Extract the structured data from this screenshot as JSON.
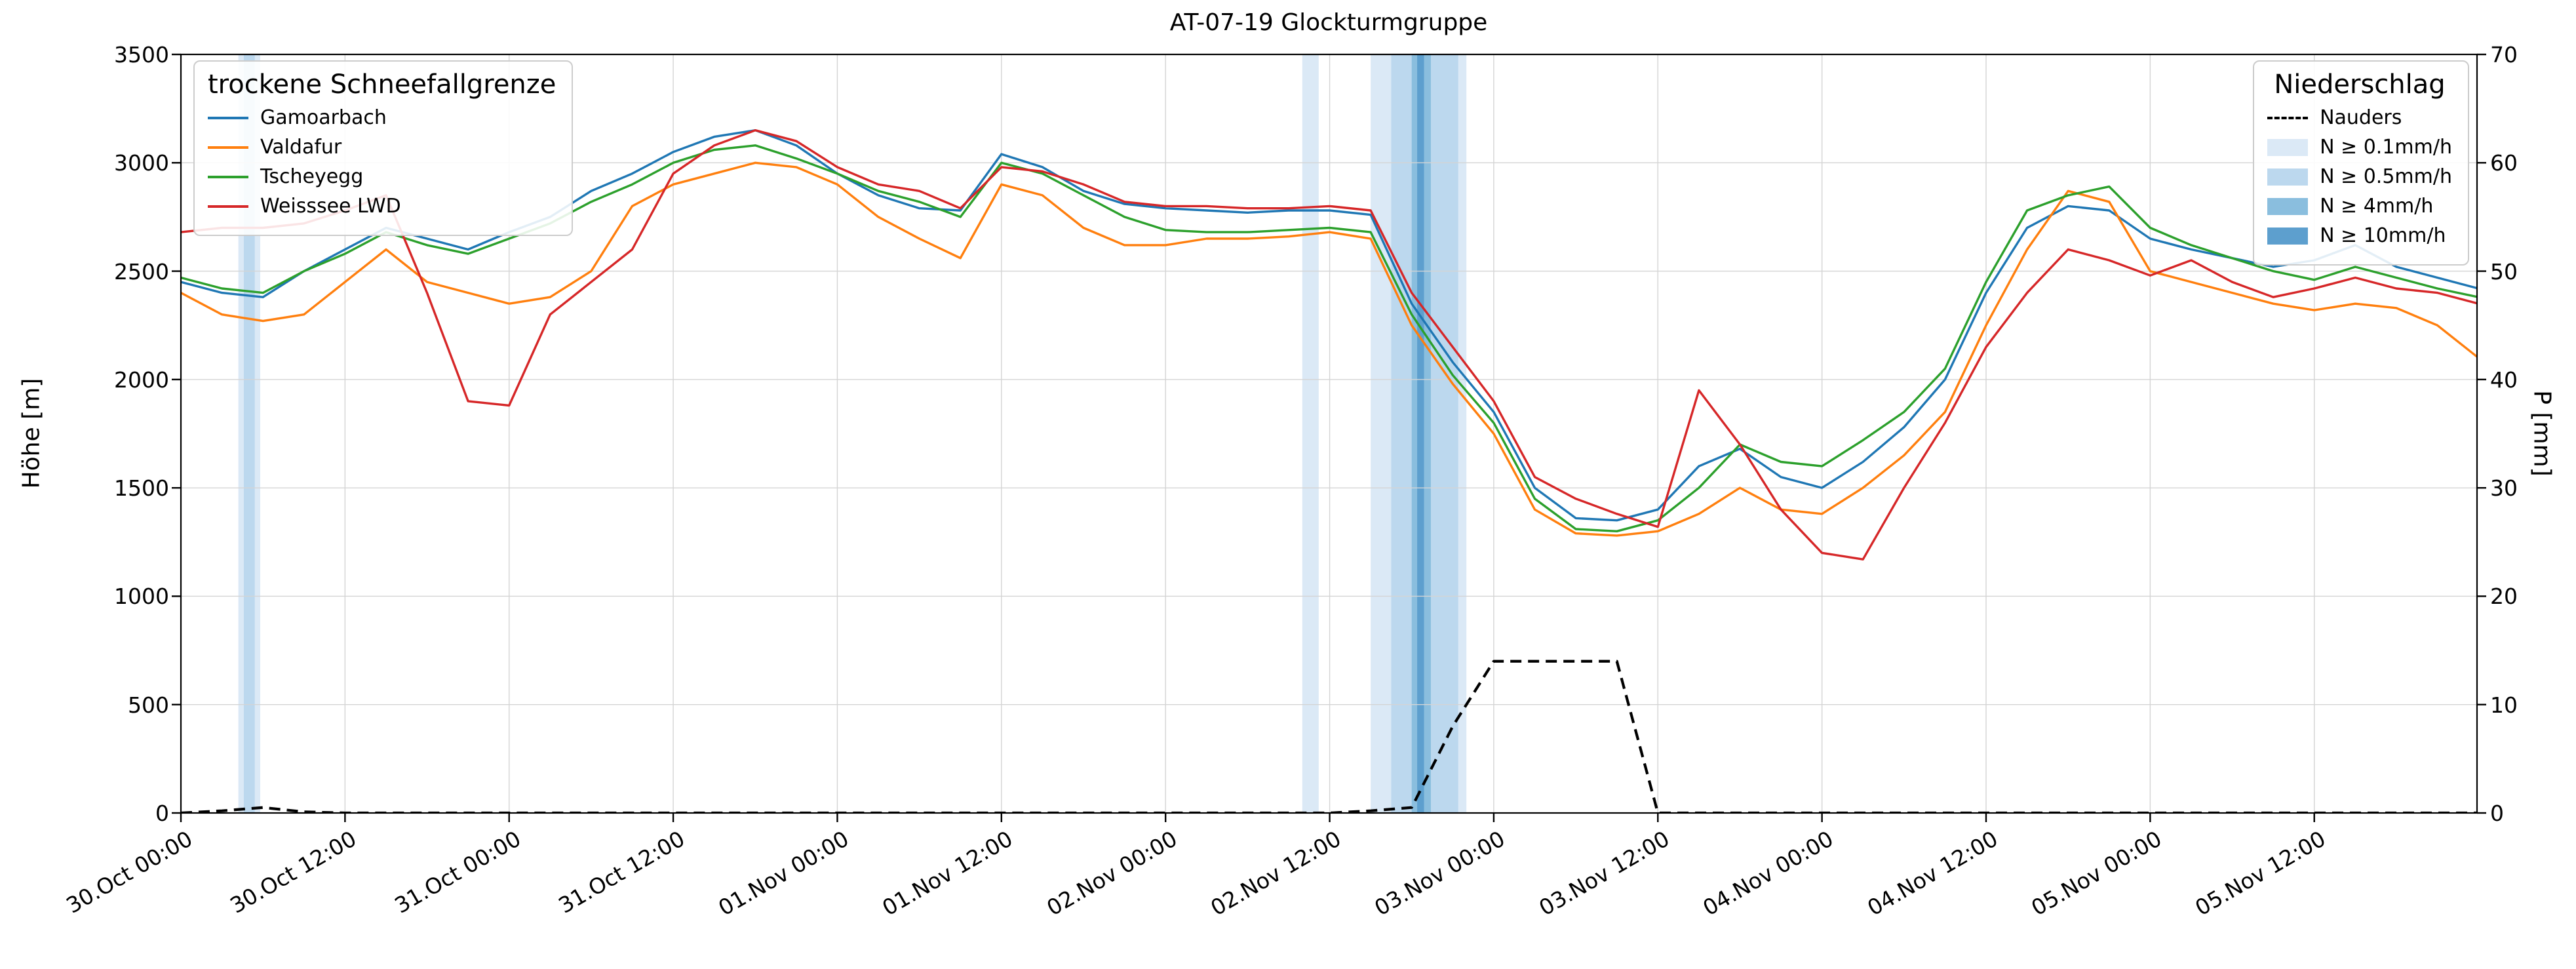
{
  "title": "AT-07-19 Glockturmgruppe",
  "axes": {
    "y_left": {
      "label": "Höhe [m]",
      "ticks": [
        0,
        500,
        1000,
        1500,
        2000,
        2500,
        3000,
        3500
      ]
    },
    "y_right": {
      "label": "P [mm]",
      "ticks": [
        0,
        10,
        20,
        30,
        40,
        50,
        60,
        70
      ]
    },
    "x": {
      "tick_hours": [
        0,
        12,
        24,
        36,
        48,
        60,
        72,
        84,
        96,
        108,
        120,
        132,
        144,
        156
      ],
      "tick_labels": [
        "30.Oct 00:00",
        "30.Oct 12:00",
        "31.Oct 00:00",
        "31.Oct 12:00",
        "01.Nov 00:00",
        "01.Nov 12:00",
        "02.Nov 00:00",
        "02.Nov 12:00",
        "03.Nov 00:00",
        "03.Nov 12:00",
        "04.Nov 00:00",
        "04.Nov 12:00",
        "05.Nov 00:00",
        "05.Nov 12:00"
      ]
    }
  },
  "legend_snowline": {
    "title": "trockene Schneefallgrenze"
  },
  "legend_precip": {
    "title": "Niederschlag",
    "band_items": [
      {
        "label": "N ≥ 0.1mm/h",
        "level": "0.1"
      },
      {
        "label": "N ≥ 0.5mm/h",
        "level": "0.5"
      },
      {
        "label": "N ≥ 4mm/h",
        "level": "4"
      },
      {
        "label": "N ≥ 10mm/h",
        "level": "10"
      }
    ]
  },
  "chart_data": {
    "type": "line",
    "title": "AT-07-19 Glockturmgruppe",
    "x_unit": "hours since 30 Oct 00:00",
    "xlim_hours": [
      0,
      167.9
    ],
    "ylim_left": [
      0,
      3500
    ],
    "ylim_right": [
      0,
      70
    ],
    "grid": true,
    "x": [
      0,
      3,
      6,
      9,
      12,
      15,
      18,
      21,
      24,
      27,
      30,
      33,
      36,
      39,
      42,
      45,
      48,
      51,
      54,
      57,
      60,
      63,
      66,
      69,
      72,
      75,
      78,
      81,
      84,
      87,
      90,
      93,
      96,
      99,
      102,
      105,
      108,
      111,
      114,
      117,
      120,
      123,
      126,
      129,
      132,
      135,
      138,
      141,
      144,
      147,
      150,
      153,
      156,
      159,
      162,
      165,
      168
    ],
    "series": [
      {
        "name": "Gamoarbach",
        "color": "#1f77b4",
        "axis": "left",
        "values": [
          2450,
          2400,
          2380,
          2500,
          2600,
          2700,
          2650,
          2600,
          2680,
          2750,
          2870,
          2950,
          3050,
          3120,
          3150,
          3080,
          2950,
          2850,
          2790,
          2780,
          3040,
          2980,
          2870,
          2810,
          2790,
          2780,
          2770,
          2780,
          2780,
          2760,
          2350,
          2080,
          1850,
          1500,
          1360,
          1350,
          1400,
          1600,
          1680,
          1550,
          1500,
          1620,
          1780,
          2000,
          2400,
          2700,
          2800,
          2780,
          2650,
          2600,
          2560,
          2520,
          2550,
          2620,
          2520,
          2470,
          2420
        ]
      },
      {
        "name": "Valdafur",
        "color": "#ff7f0e",
        "axis": "left",
        "values": [
          2400,
          2300,
          2270,
          2300,
          2450,
          2600,
          2450,
          2400,
          2350,
          2380,
          2500,
          2800,
          2900,
          2950,
          3000,
          2980,
          2900,
          2750,
          2650,
          2560,
          2900,
          2850,
          2700,
          2620,
          2620,
          2650,
          2650,
          2660,
          2680,
          2650,
          2250,
          1980,
          1750,
          1400,
          1290,
          1280,
          1300,
          1380,
          1500,
          1400,
          1380,
          1500,
          1650,
          1850,
          2250,
          2600,
          2870,
          2820,
          2500,
          2450,
          2400,
          2350,
          2320,
          2350,
          2330,
          2250,
          2100
        ]
      },
      {
        "name": "Tscheyegg",
        "color": "#2ca02c",
        "axis": "left",
        "values": [
          2470,
          2420,
          2400,
          2500,
          2580,
          2680,
          2620,
          2580,
          2650,
          2720,
          2820,
          2900,
          3000,
          3060,
          3080,
          3020,
          2950,
          2870,
          2820,
          2750,
          3000,
          2950,
          2850,
          2750,
          2690,
          2680,
          2680,
          2690,
          2700,
          2680,
          2300,
          2020,
          1800,
          1450,
          1310,
          1300,
          1350,
          1500,
          1700,
          1620,
          1600,
          1720,
          1850,
          2050,
          2450,
          2780,
          2850,
          2890,
          2700,
          2620,
          2560,
          2500,
          2460,
          2520,
          2470,
          2420,
          2380
        ]
      },
      {
        "name": "Weisssee LWD",
        "color": "#d62728",
        "axis": "left",
        "values": [
          2680,
          2700,
          2700,
          2720,
          2780,
          2850,
          2400,
          1900,
          1880,
          2300,
          2450,
          2600,
          2950,
          3080,
          3150,
          3100,
          2980,
          2900,
          2870,
          2790,
          2980,
          2960,
          2900,
          2820,
          2800,
          2800,
          2790,
          2790,
          2800,
          2780,
          2400,
          2150,
          1900,
          1550,
          1450,
          1380,
          1320,
          1950,
          1700,
          1400,
          1200,
          1170,
          1500,
          1800,
          2150,
          2400,
          2600,
          2550,
          2480,
          2550,
          2450,
          2380,
          2420,
          2470,
          2420,
          2400,
          2350
        ]
      }
    ],
    "precip_series": {
      "name": "Nauders",
      "style": "dashed",
      "color": "#000000",
      "axis": "right",
      "values": [
        0,
        0.2,
        0.5,
        0.1,
        0,
        0,
        0,
        0,
        0,
        0,
        0,
        0,
        0,
        0,
        0,
        0,
        0,
        0,
        0,
        0,
        0,
        0,
        0,
        0,
        0,
        0,
        0,
        0,
        0,
        0.2,
        0.5,
        8,
        14,
        14,
        14,
        14,
        0,
        0,
        0,
        0,
        0,
        0,
        0,
        0,
        0,
        0,
        0,
        0,
        0,
        0,
        0,
        0,
        0,
        0,
        0,
        0,
        0
      ]
    },
    "band_colors": {
      "0.1": "#dbe9f6",
      "0.5": "#bcd8ee",
      "4": "#8abede",
      "10": "#5d9fce"
    },
    "precip_bands": [
      {
        "start_h": 4.2,
        "end_h": 5.8,
        "level": "0.1"
      },
      {
        "start_h": 4.6,
        "end_h": 5.4,
        "level": "0.5"
      },
      {
        "start_h": 82.0,
        "end_h": 83.2,
        "level": "0.1"
      },
      {
        "start_h": 87.0,
        "end_h": 94.0,
        "level": "0.1"
      },
      {
        "start_h": 88.5,
        "end_h": 93.4,
        "level": "0.5"
      },
      {
        "start_h": 90.0,
        "end_h": 91.4,
        "level": "4"
      },
      {
        "start_h": 90.4,
        "end_h": 90.9,
        "level": "10"
      }
    ]
  }
}
